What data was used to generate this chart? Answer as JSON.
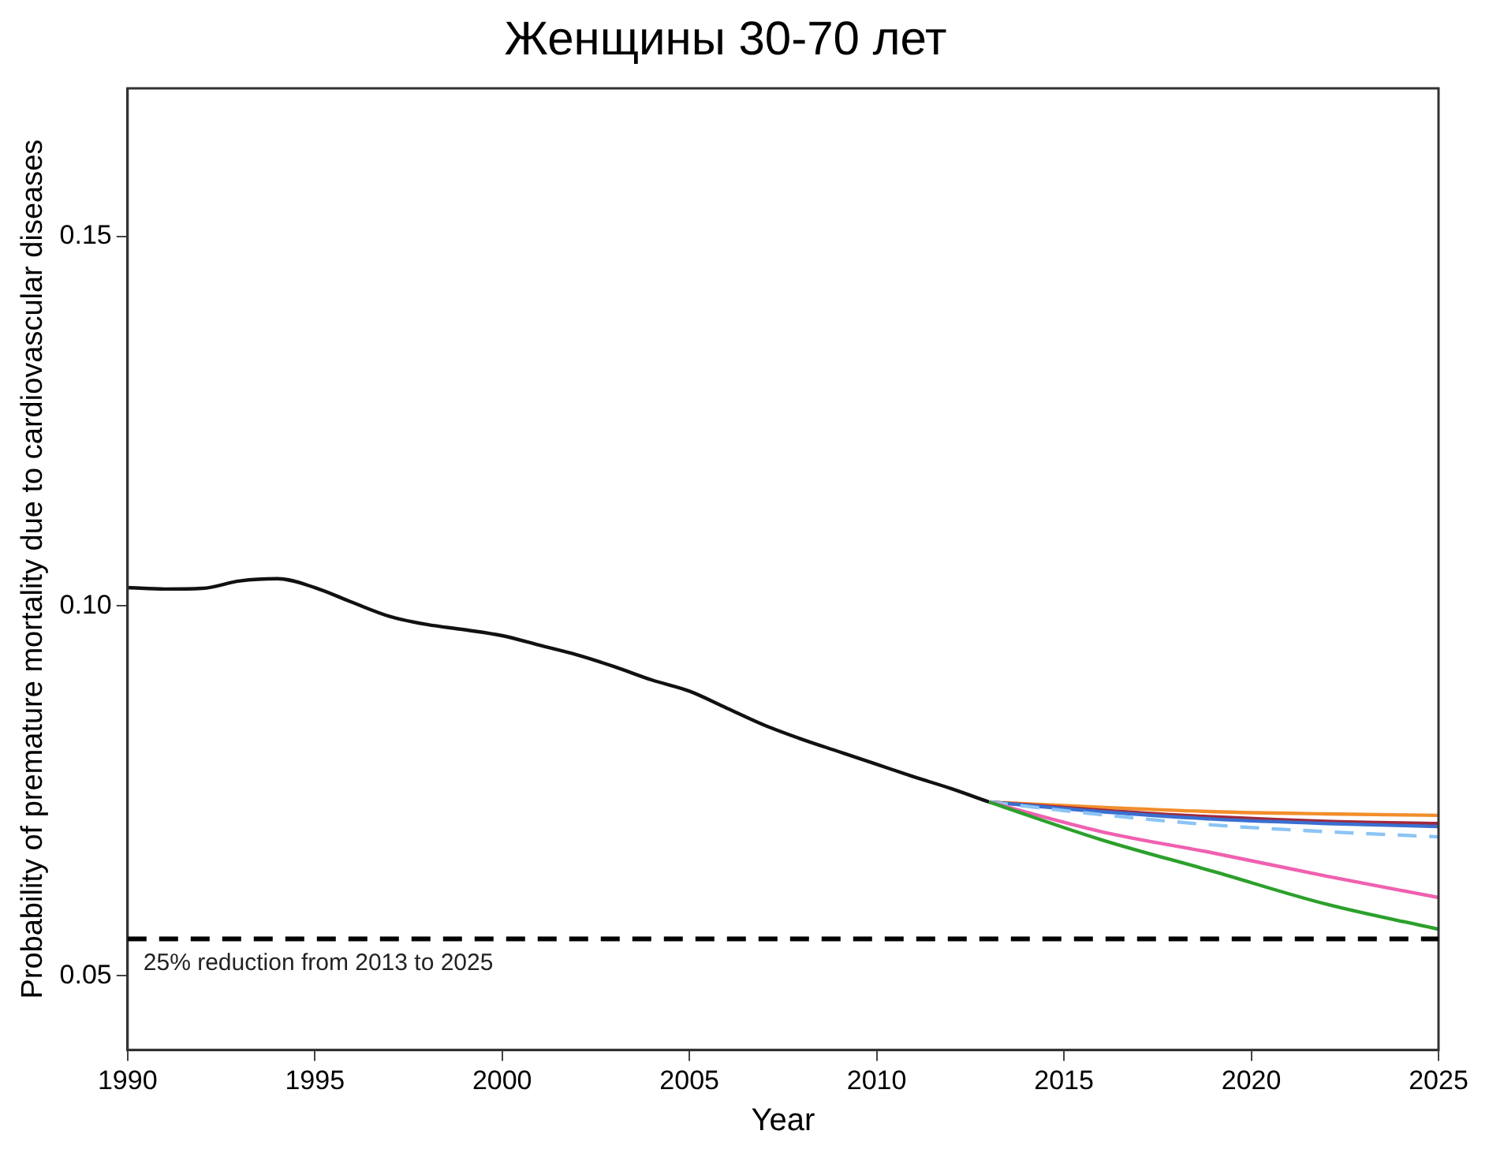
{
  "chart_data": {
    "type": "line",
    "title": "Женщины 30-70 лет",
    "xlabel": "Year",
    "ylabel": "Probability of premature mortality due to cardiovascular diseases",
    "xlim": [
      1990,
      2025
    ],
    "xticks": [
      1990,
      1995,
      2000,
      2005,
      2010,
      2015,
      2020,
      2025
    ],
    "ylim": [
      0.04,
      0.17
    ],
    "yticks": [
      {
        "value": 0.05,
        "label": "0.05"
      },
      {
        "value": 0.1,
        "label": "0.10"
      },
      {
        "value": 0.15,
        "label": "0.15"
      }
    ],
    "legend": false,
    "marker": "none",
    "series": [
      {
        "color": "#111111",
        "x": [
          1990,
          1991,
          1992,
          1993,
          1994,
          1995,
          1996,
          1997,
          1998,
          1999,
          2000,
          2001,
          2002,
          2003,
          2004,
          2005,
          2006,
          2007,
          2008,
          2009,
          2010,
          2011,
          2012,
          2013
        ],
        "values": [
          0.1025,
          0.1023,
          0.1024,
          0.1034,
          0.1037,
          0.1025,
          0.1005,
          0.0986,
          0.0975,
          0.0968,
          0.096,
          0.0947,
          0.0934,
          0.0918,
          0.09,
          0.0885,
          0.0862,
          0.0839,
          0.082,
          0.0803,
          0.0786,
          0.0769,
          0.0753,
          0.0735
        ]
      },
      {
        "color": "#f28e2b",
        "x": [
          2013,
          2016,
          2019,
          2022,
          2025
        ],
        "values": [
          0.0735,
          0.0728,
          0.0722,
          0.0719,
          0.0717
        ]
      },
      {
        "color": "#a0283c",
        "x": [
          2013,
          2016,
          2019,
          2022,
          2025
        ],
        "values": [
          0.0735,
          0.0724,
          0.0715,
          0.0709,
          0.0706
        ]
      },
      {
        "color": "#3a6fd0",
        "x": [
          2013,
          2016,
          2019,
          2022,
          2025
        ],
        "values": [
          0.0735,
          0.0722,
          0.0712,
          0.0706,
          0.0702
        ]
      },
      {
        "color": "#8cc4f5",
        "line_style": "dashed",
        "x": [
          2013,
          2016,
          2019,
          2022,
          2025
        ],
        "values": [
          0.0735,
          0.0718,
          0.0704,
          0.0695,
          0.0688
        ]
      },
      {
        "color": "#f060b0",
        "x": [
          2013,
          2016,
          2019,
          2022,
          2025
        ],
        "values": [
          0.0735,
          0.0695,
          0.0666,
          0.0635,
          0.0606
        ]
      },
      {
        "color": "#2ca02c",
        "x": [
          2013,
          2016,
          2019,
          2022,
          2025
        ],
        "values": [
          0.0735,
          0.0684,
          0.0641,
          0.0597,
          0.0563
        ]
      }
    ],
    "ref_lines": [
      {
        "axis": "y",
        "value": 0.055,
        "label": "25% reduction from 2013 to 2025",
        "color": "#000000",
        "line_style": "dashed"
      }
    ]
  }
}
